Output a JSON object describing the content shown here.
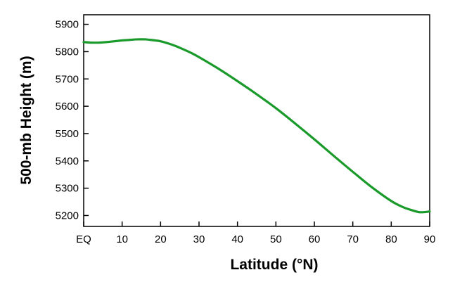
{
  "chart_data": {
    "type": "line",
    "title": "",
    "xlabel": "Latitude (°N)",
    "ylabel": "500-mb Height (m)",
    "xlim": [
      0,
      90
    ],
    "ylim": [
      5160,
      5935
    ],
    "xticks": [
      0,
      10,
      20,
      30,
      40,
      50,
      60,
      70,
      80,
      90
    ],
    "xtick_labels": [
      "EQ",
      "10",
      "20",
      "30",
      "40",
      "50",
      "60",
      "70",
      "80",
      "90"
    ],
    "yticks": [
      5200,
      5300,
      5400,
      5500,
      5600,
      5700,
      5800,
      5900
    ],
    "ytick_labels": [
      "5200",
      "5300",
      "5400",
      "5500",
      "5600",
      "5700",
      "5800",
      "5900"
    ],
    "grid": false,
    "legend": "none",
    "line_color": "#1a9a2a",
    "series": [
      {
        "x": [
          0,
          2,
          4,
          6,
          8,
          10,
          12,
          14,
          16,
          18,
          20,
          22,
          24,
          26,
          28,
          30,
          35,
          40,
          45,
          50,
          55,
          60,
          65,
          70,
          75,
          80,
          83,
          85,
          87,
          88,
          89,
          90
        ],
        "values": [
          5835,
          5833,
          5833,
          5835,
          5838,
          5841,
          5843,
          5845,
          5845,
          5842,
          5838,
          5830,
          5820,
          5808,
          5795,
          5780,
          5738,
          5692,
          5644,
          5593,
          5537,
          5479,
          5419,
          5360,
          5303,
          5253,
          5231,
          5221,
          5213,
          5212,
          5213,
          5215
        ]
      }
    ]
  }
}
